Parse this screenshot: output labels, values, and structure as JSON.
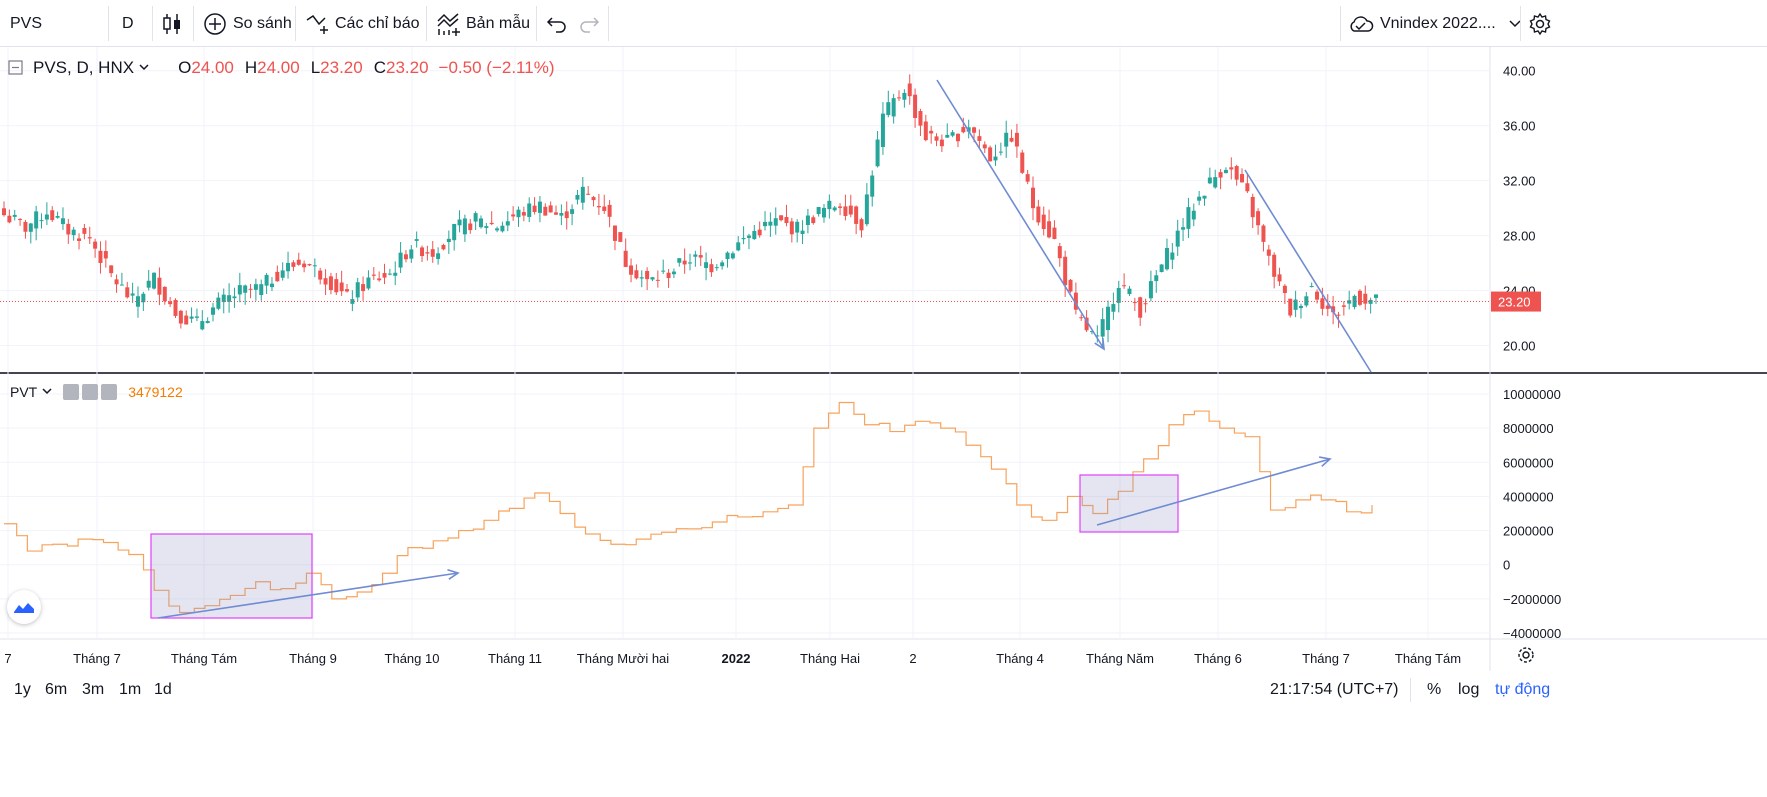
{
  "toolbar": {
    "symbol": "PVS",
    "interval": "D",
    "compare_label": "So sánh",
    "indicators_label": "Các chỉ báo",
    "templates_label": "Bản mẫu",
    "layout_name": "Vnindex 2022...."
  },
  "legend": {
    "title": "PVS, D, HNX",
    "o_label": "O",
    "o_value": "24.00",
    "h_label": "H",
    "h_value": "24.00",
    "l_label": "L",
    "l_value": "23.20",
    "c_label": "C",
    "c_value": "23.20",
    "change": "−0.50 (−2.11%)"
  },
  "pvt": {
    "name": "PVT",
    "value": "3479122"
  },
  "price_axis": {
    "ticks": [
      "40.00",
      "36.00",
      "32.00",
      "28.00",
      "24.00",
      "20.00"
    ],
    "last_price": "23.20"
  },
  "pvt_axis": {
    "ticks": [
      "10000000",
      "8000000",
      "6000000",
      "4000000",
      "2000000",
      "0",
      "−2000000",
      "−4000000"
    ]
  },
  "time_axis": {
    "labels": [
      "7",
      "Tháng 7",
      "Tháng Tám",
      "Tháng 9",
      "Tháng 10",
      "Tháng 11",
      "Tháng Mười hai",
      "2022",
      "Tháng Hai",
      "2",
      "Tháng 4",
      "Tháng Năm",
      "Tháng 6",
      "Tháng 7",
      "Tháng Tám"
    ]
  },
  "bottom": {
    "ranges": [
      "1y",
      "6m",
      "3m",
      "1m",
      "1d"
    ],
    "clock": "21:17:54 (UTC+7)",
    "percent": "%",
    "log": "log",
    "auto": "tự động"
  },
  "colors": {
    "up": "#26a69a",
    "down": "#ef5350",
    "pvt_line": "#f7a35c",
    "arrow": "#6f8bd3",
    "box": "#e040fb",
    "accent": "#2962ff"
  },
  "chart_data": [
    {
      "type": "candlestick",
      "title": "PVS, D, HNX",
      "ylim": [
        18,
        41
      ],
      "y_ticks": [
        20,
        24,
        28,
        32,
        36,
        40
      ],
      "last_close": 23.2,
      "approx_closes": [
        29.5,
        28.6,
        29.8,
        28.4,
        27.8,
        25.1,
        23.2,
        24.9,
        22.4,
        21.6,
        23.0,
        23.9,
        24.2,
        25.6,
        26.1,
        25.0,
        23.4,
        24.7,
        25.2,
        27.3,
        26.8,
        28.4,
        29.1,
        28.7,
        29.6,
        30.2,
        29.3,
        31.2,
        30.1,
        26.1,
        24.6,
        25.3,
        26.4,
        25.8,
        27.1,
        28.3,
        29.0,
        28.5,
        29.7,
        30.4,
        28.9,
        36.6,
        38.8,
        35.2,
        34.8,
        36.1,
        33.7,
        35.3,
        30.2,
        27.6,
        22.1,
        20.3,
        24.7,
        22.6,
        25.8,
        28.9,
        31.4,
        33.2,
        30.8,
        26.2,
        22.5,
        24.3,
        22.1,
        23.6,
        23.2
      ]
    },
    {
      "type": "line",
      "title": "PVT",
      "ylim": [
        -4000000,
        10000000
      ],
      "y_ticks": [
        -4000000,
        -2000000,
        0,
        2000000,
        4000000,
        6000000,
        8000000,
        10000000
      ],
      "last_value": 3479122,
      "approx_values": [
        2400000,
        800000,
        1200000,
        1500000,
        1300000,
        600000,
        -1500000,
        -2800000,
        -2400000,
        -1800000,
        -1000000,
        -1400000,
        -500000,
        -2000000,
        -1600000,
        -500000,
        1000000,
        1400000,
        2000000,
        2600000,
        3300000,
        4200000,
        3000000,
        1800000,
        1200000,
        1500000,
        1900000,
        2100000,
        2500000,
        2800000,
        3100000,
        3500000,
        8000000,
        9500000,
        8200000,
        7800000,
        8400000,
        8000000,
        7000000,
        5600000,
        3500000,
        2600000,
        4000000,
        3000000,
        4300000,
        6200000,
        8200000,
        9000000,
        8000000,
        7500000,
        3200000,
        3800000,
        3800000,
        3100000,
        3500000
      ]
    }
  ]
}
